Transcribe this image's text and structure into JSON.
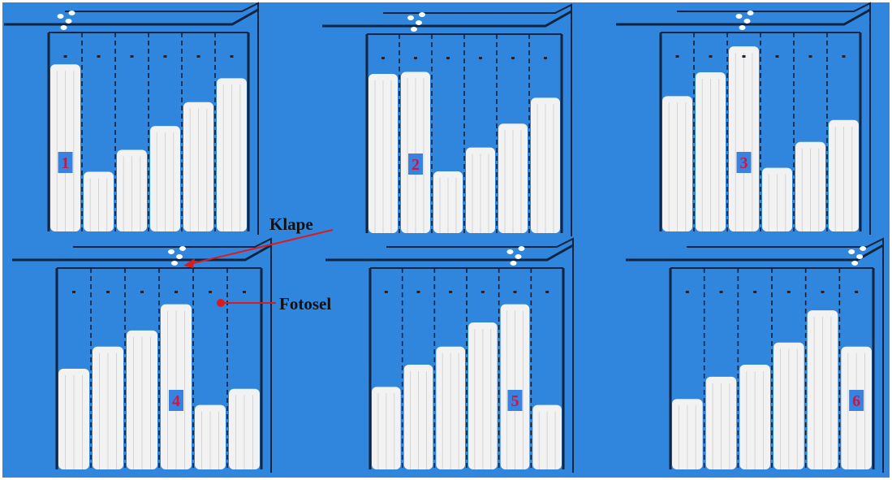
{
  "annotations": {
    "klape": "Klape",
    "fotosel": "Fotosel"
  },
  "colors": {
    "background": "#2f86dc",
    "frame": "#0f2440",
    "column_fill": "#f2f2f2",
    "label_box": "#3a82e0",
    "label_text": "#d4143c",
    "arrow": "#dd1a1a"
  },
  "stages": [
    {
      "label": "1",
      "levels": [
        0.84,
        0.3,
        0.41,
        0.53,
        0.65,
        0.77
      ],
      "label_column": 1,
      "active_column": 1
    },
    {
      "label": "2",
      "levels": [
        0.8,
        0.81,
        0.31,
        0.43,
        0.55,
        0.68
      ],
      "label_column": 2,
      "active_column": 2
    },
    {
      "label": "3",
      "levels": [
        0.68,
        0.8,
        0.93,
        0.32,
        0.45,
        0.56
      ],
      "label_column": 3,
      "active_column": 3
    },
    {
      "label": "4",
      "levels": [
        0.5,
        0.61,
        0.69,
        0.82,
        0.32,
        0.4
      ],
      "label_column": 4,
      "active_column": 4
    },
    {
      "label": "5",
      "levels": [
        0.41,
        0.52,
        0.61,
        0.73,
        0.82,
        0.32
      ],
      "label_column": 5,
      "active_column": 5
    },
    {
      "label": "6",
      "levels": [
        0.35,
        0.46,
        0.52,
        0.63,
        0.79,
        0.61
      ],
      "label_column": 6,
      "active_column": 6
    }
  ]
}
